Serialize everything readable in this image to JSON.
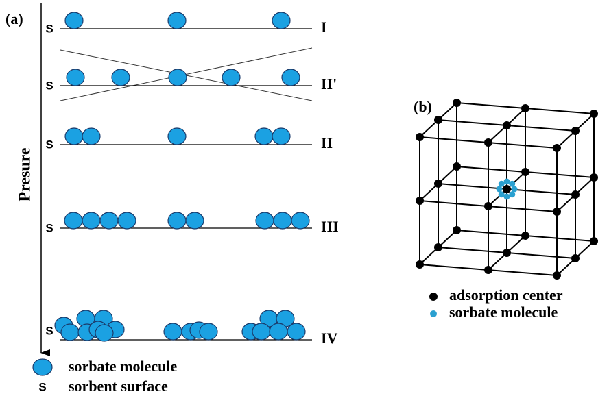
{
  "panel_a": {
    "label": "(a)",
    "axis_label": "Presure",
    "rows": [
      {
        "surface_label": "S",
        "level": "I"
      },
      {
        "surface_label": "S",
        "level": "II'"
      },
      {
        "surface_label": "S",
        "level": "II"
      },
      {
        "surface_label": "S",
        "level": "III"
      },
      {
        "surface_label": "S",
        "level": "IV"
      }
    ],
    "legend": [
      {
        "symbol": null,
        "text": "sorbate molecule"
      },
      {
        "symbol": "S",
        "text": "sorbent surface"
      }
    ]
  },
  "panel_b": {
    "label": "(b)",
    "legend": [
      "adsorption center",
      "sorbate molecule"
    ]
  }
}
